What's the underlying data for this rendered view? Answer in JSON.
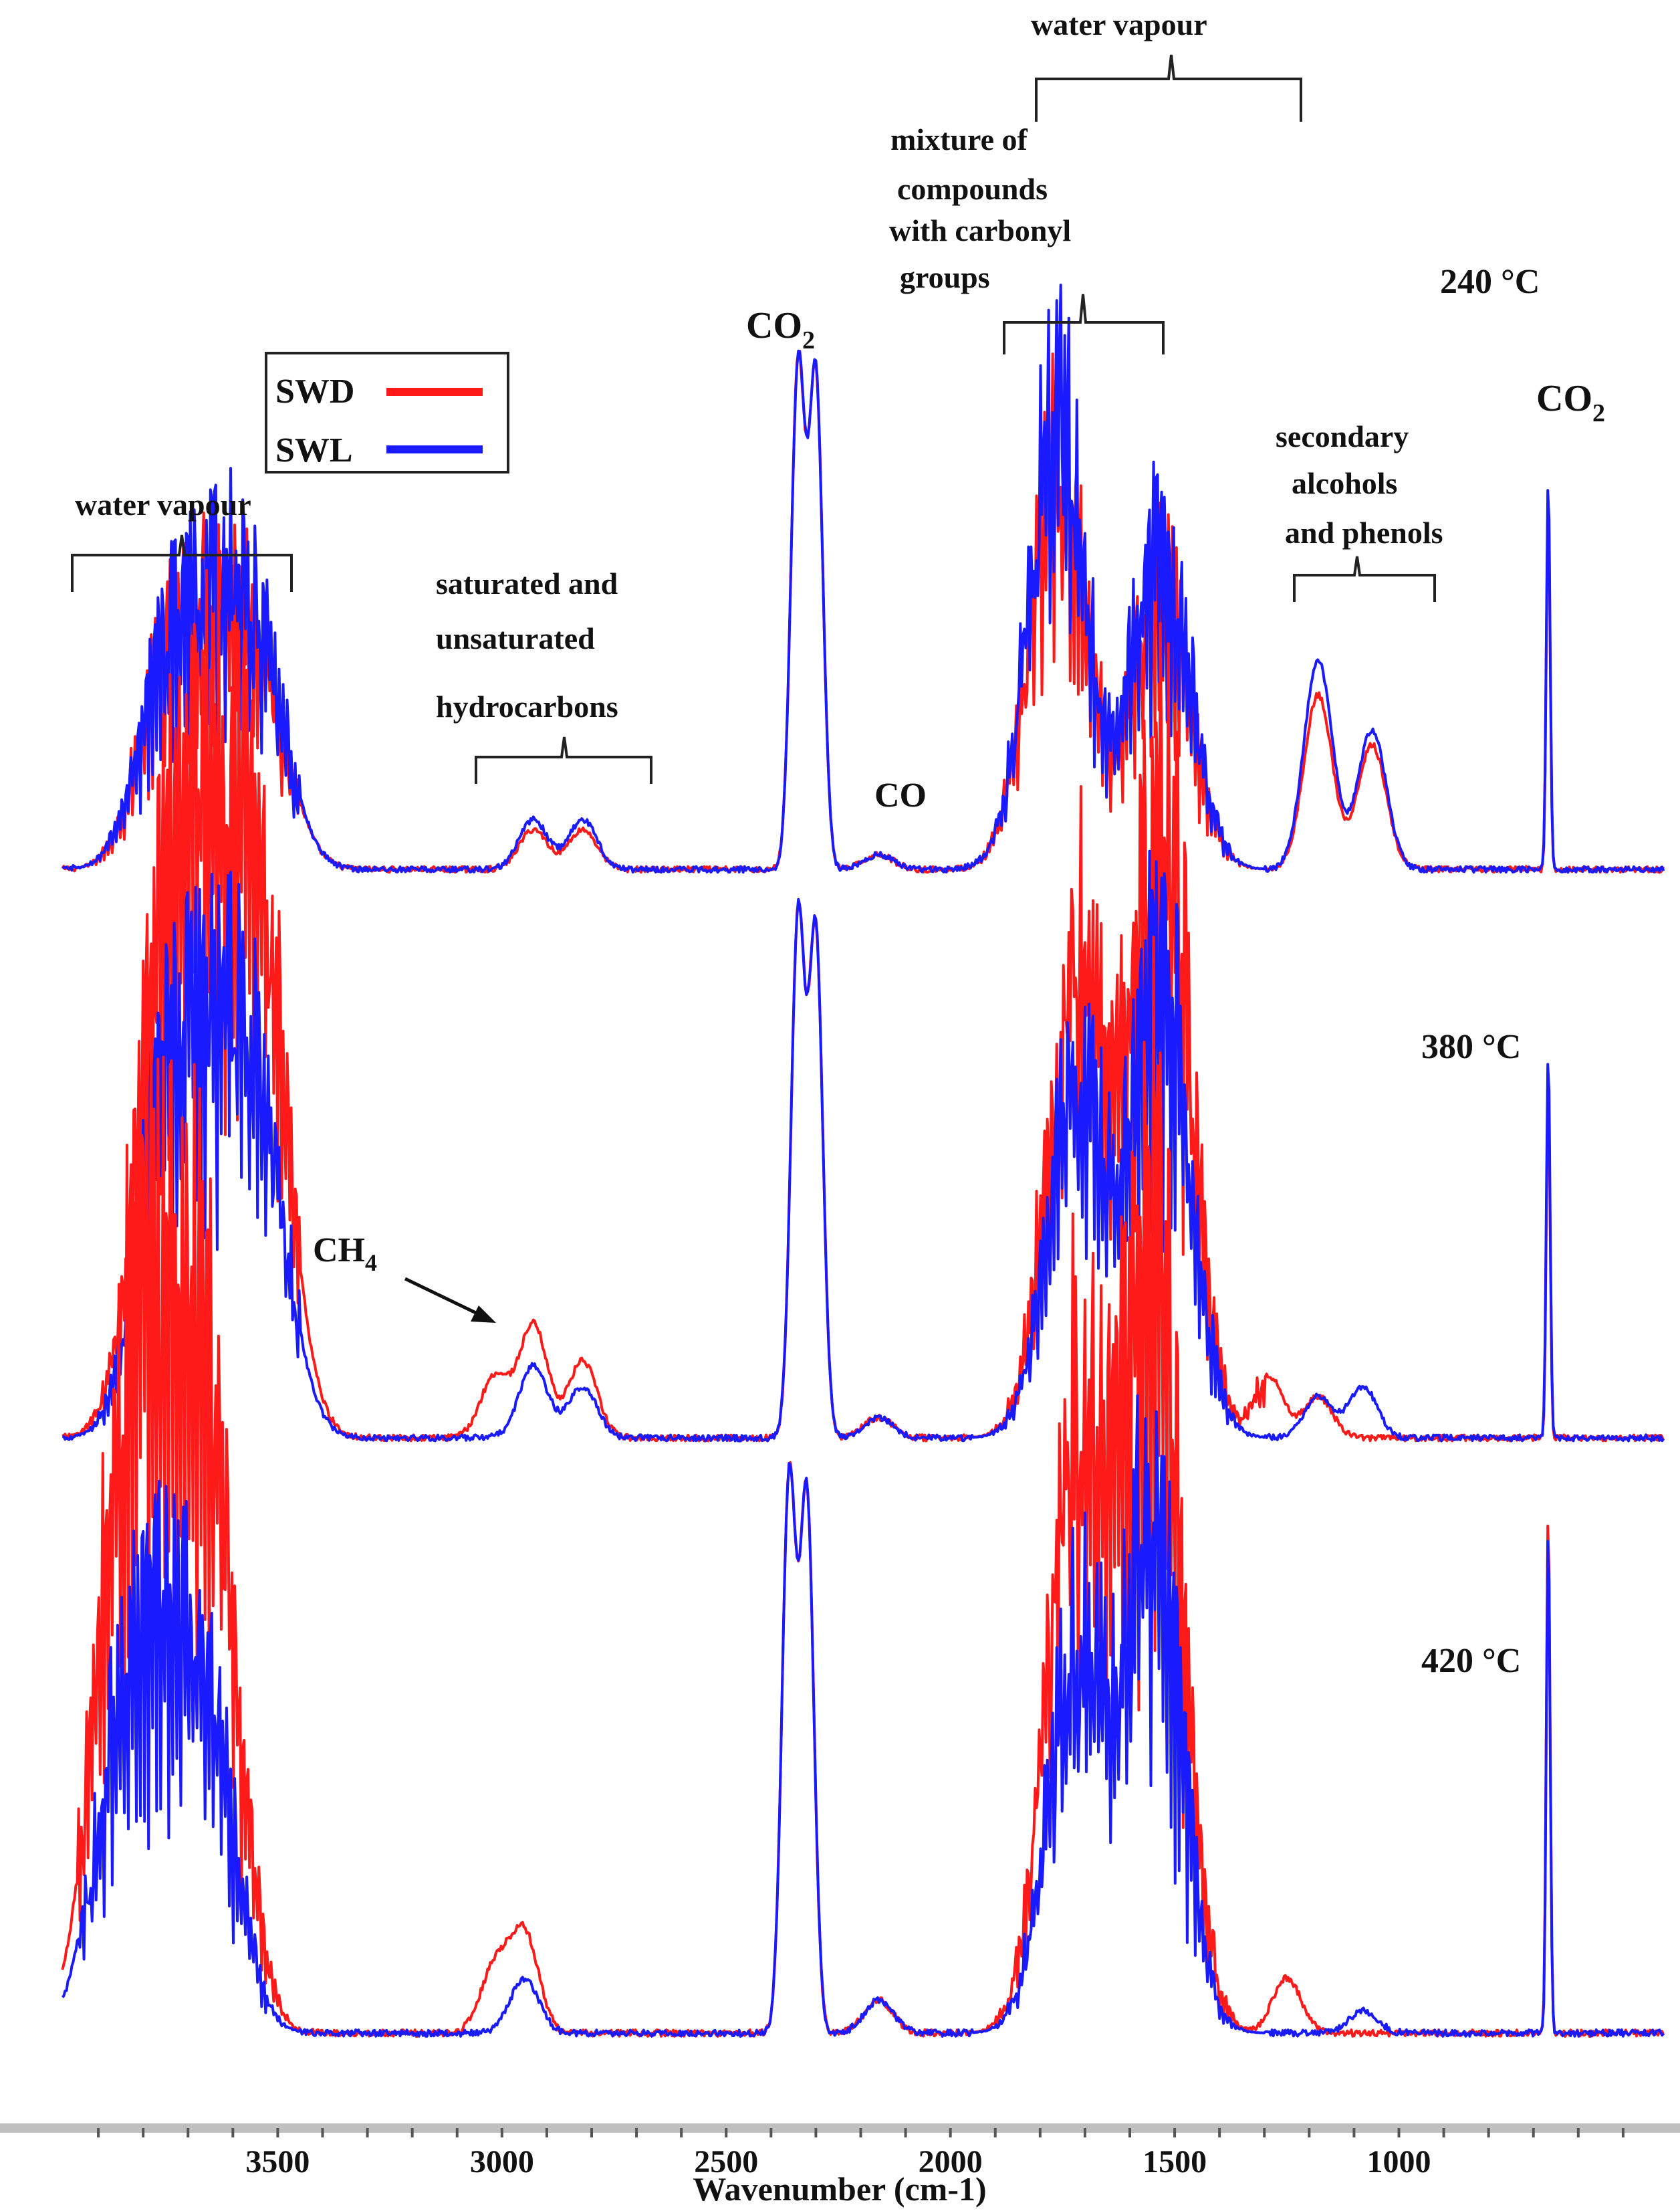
{
  "chart_data": {
    "type": "line",
    "title": "",
    "xlabel": "Wavenumber (cm-1)",
    "ylabel": "",
    "xlim": [
      4000,
      400
    ],
    "x_reversed": true,
    "grid": false,
    "xticks": [
      "3500",
      "3000",
      "2500",
      "2000",
      "1500",
      "1000"
    ],
    "legend": {
      "placement": "upper-left",
      "entries": [
        {
          "name": "SWD",
          "color": "#ff1a1a"
        },
        {
          "name": "SWL",
          "color": "#1a1aff"
        }
      ]
    },
    "panels": [
      {
        "temperature": "240 °C",
        "series": [
          {
            "name": "SWD",
            "peaks": [
              {
                "x": 3750,
                "y": 0.38
              },
              {
                "x": 3640,
                "y": 0.4
              },
              {
                "x": 3540,
                "y": 0.36
              },
              {
                "x": 2930,
                "y": 0.08
              },
              {
                "x": 2820,
                "y": 0.08
              },
              {
                "x": 2340,
                "y": 1.0
              },
              {
                "x": 2300,
                "y": 0.98
              },
              {
                "x": 2160,
                "y": 0.03
              },
              {
                "x": 1760,
                "y": 0.8
              },
              {
                "x": 1530,
                "y": 0.6
              },
              {
                "x": 1180,
                "y": 0.35
              },
              {
                "x": 1060,
                "y": 0.25
              },
              {
                "x": 667,
                "y": 0.75
              }
            ]
          },
          {
            "name": "SWL",
            "peaks": [
              {
                "x": 3750,
                "y": 0.4
              },
              {
                "x": 3640,
                "y": 0.42
              },
              {
                "x": 3540,
                "y": 0.38
              },
              {
                "x": 2930,
                "y": 0.1
              },
              {
                "x": 2820,
                "y": 0.1
              },
              {
                "x": 2340,
                "y": 1.0
              },
              {
                "x": 2300,
                "y": 0.98
              },
              {
                "x": 2160,
                "y": 0.03
              },
              {
                "x": 1760,
                "y": 0.92
              },
              {
                "x": 1530,
                "y": 0.68
              },
              {
                "x": 1180,
                "y": 0.42
              },
              {
                "x": 1060,
                "y": 0.28
              },
              {
                "x": 667,
                "y": 0.78
              }
            ]
          }
        ]
      },
      {
        "temperature": "380 °C",
        "series": [
          {
            "name": "SWD",
            "peaks": [
              {
                "x": 3750,
                "y": 0.95
              },
              {
                "x": 3640,
                "y": 0.92
              },
              {
                "x": 3540,
                "y": 0.88
              },
              {
                "x": 3016,
                "y": 0.12
              },
              {
                "x": 2930,
                "y": 0.22
              },
              {
                "x": 2820,
                "y": 0.15
              },
              {
                "x": 2340,
                "y": 1.0
              },
              {
                "x": 2300,
                "y": 0.97
              },
              {
                "x": 2160,
                "y": 0.04
              },
              {
                "x": 1720,
                "y": 0.95
              },
              {
                "x": 1530,
                "y": 1.3
              },
              {
                "x": 1290,
                "y": 0.12
              },
              {
                "x": 1180,
                "y": 0.08
              },
              {
                "x": 667,
                "y": 0.7
              }
            ]
          },
          {
            "name": "SWL",
            "peaks": [
              {
                "x": 3750,
                "y": 0.62
              },
              {
                "x": 3640,
                "y": 0.6
              },
              {
                "x": 3540,
                "y": 0.55
              },
              {
                "x": 2930,
                "y": 0.14
              },
              {
                "x": 2820,
                "y": 0.1
              },
              {
                "x": 2340,
                "y": 1.0
              },
              {
                "x": 2300,
                "y": 0.97
              },
              {
                "x": 2160,
                "y": 0.04
              },
              {
                "x": 1720,
                "y": 0.7
              },
              {
                "x": 1530,
                "y": 0.95
              },
              {
                "x": 1180,
                "y": 0.08
              },
              {
                "x": 1080,
                "y": 0.1
              },
              {
                "x": 667,
                "y": 0.75
              }
            ]
          }
        ]
      },
      {
        "temperature": "420 °C",
        "series": [
          {
            "name": "SWD",
            "peaks": [
              {
                "x": 3850,
                "y": 0.9
              },
              {
                "x": 3750,
                "y": 0.94
              },
              {
                "x": 3650,
                "y": 0.96
              },
              {
                "x": 3016,
                "y": 0.12
              },
              {
                "x": 2950,
                "y": 0.18
              },
              {
                "x": 2360,
                "y": 1.0
              },
              {
                "x": 2320,
                "y": 0.97
              },
              {
                "x": 2160,
                "y": 0.06
              },
              {
                "x": 1720,
                "y": 1.15
              },
              {
                "x": 1550,
                "y": 1.55
              },
              {
                "x": 1250,
                "y": 0.1
              },
              {
                "x": 667,
                "y": 0.95
              }
            ]
          },
          {
            "name": "SWL",
            "peaks": [
              {
                "x": 3850,
                "y": 0.5
              },
              {
                "x": 3750,
                "y": 0.52
              },
              {
                "x": 3650,
                "y": 0.48
              },
              {
                "x": 2950,
                "y": 0.1
              },
              {
                "x": 2360,
                "y": 1.0
              },
              {
                "x": 2320,
                "y": 0.97
              },
              {
                "x": 2160,
                "y": 0.06
              },
              {
                "x": 1720,
                "y": 0.7
              },
              {
                "x": 1550,
                "y": 0.95
              },
              {
                "x": 1080,
                "y": 0.04
              },
              {
                "x": 667,
                "y": 0.92
              }
            ]
          }
        ]
      }
    ],
    "annotations": {
      "water_vapour_left": "water vapour",
      "hydrocarbons_1": "saturated and",
      "hydrocarbons_2": "unsaturated",
      "hydrocarbons_3": "hydrocarbons",
      "co2_left": "CO",
      "co2_right": "CO",
      "co2_sub": "2",
      "co": "CO",
      "water_vapour_top": "water vapour",
      "carbonyl_1": "mixture of",
      "carbonyl_2": "compounds",
      "carbonyl_3": "with carbonyl",
      "carbonyl_4": "groups",
      "alcohols_1": "secondary",
      "alcohols_2": "alcohols",
      "alcohols_3": "and phenols",
      "ch4": "CH",
      "ch4_sub": "4"
    }
  }
}
